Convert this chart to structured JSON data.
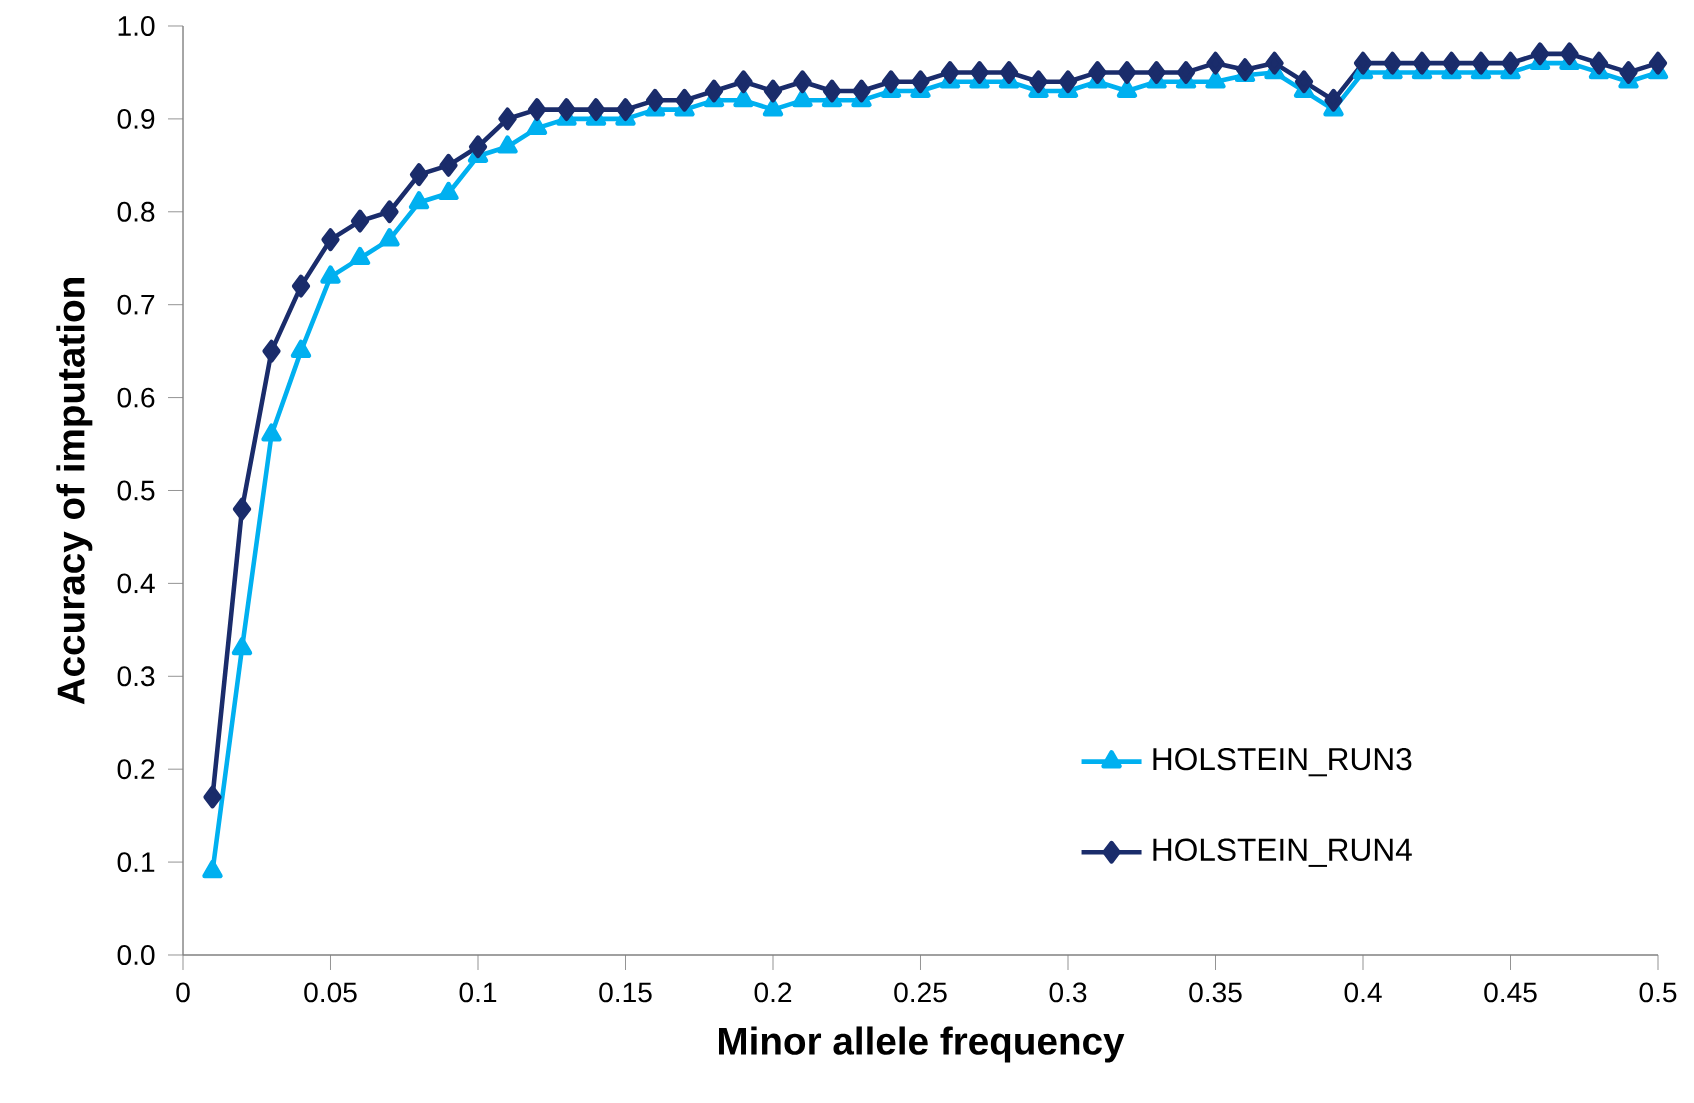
{
  "chart_data": {
    "type": "line",
    "xlabel": "Minor allele frequency",
    "ylabel": "Accuracy of imputation",
    "x": [
      0.01,
      0.02,
      0.03,
      0.04,
      0.05,
      0.06,
      0.07,
      0.08,
      0.09,
      0.1,
      0.11,
      0.12,
      0.13,
      0.14,
      0.15,
      0.16,
      0.17,
      0.18,
      0.19,
      0.2,
      0.21,
      0.22,
      0.23,
      0.24,
      0.25,
      0.26,
      0.27,
      0.28,
      0.29,
      0.3,
      0.31,
      0.32,
      0.33,
      0.34,
      0.35,
      0.36,
      0.37,
      0.38,
      0.39,
      0.4,
      0.41,
      0.42,
      0.43,
      0.44,
      0.45,
      0.46,
      0.47,
      0.48,
      0.49,
      0.5
    ],
    "series": [
      {
        "name": "HOLSTEIN_RUN3",
        "color": "#00b0f0",
        "marker": "triangle",
        "values": [
          0.09,
          0.33,
          0.56,
          0.65,
          0.73,
          0.75,
          0.77,
          0.81,
          0.82,
          0.86,
          0.87,
          0.89,
          0.9,
          0.9,
          0.9,
          0.91,
          0.91,
          0.92,
          0.92,
          0.91,
          0.92,
          0.92,
          0.92,
          0.93,
          0.93,
          0.94,
          0.94,
          0.94,
          0.93,
          0.93,
          0.94,
          0.93,
          0.94,
          0.94,
          0.94,
          0.947,
          0.95,
          0.93,
          0.91,
          0.95,
          0.95,
          0.95,
          0.95,
          0.95,
          0.95,
          0.96,
          0.96,
          0.95,
          0.94,
          0.95
        ]
      },
      {
        "name": "HOLSTEIN_RUN4",
        "color": "#1a2c6b",
        "marker": "diamond",
        "values": [
          0.17,
          0.48,
          0.65,
          0.72,
          0.77,
          0.79,
          0.8,
          0.84,
          0.85,
          0.87,
          0.9,
          0.91,
          0.91,
          0.91,
          0.91,
          0.92,
          0.92,
          0.93,
          0.94,
          0.93,
          0.94,
          0.93,
          0.93,
          0.94,
          0.94,
          0.95,
          0.95,
          0.95,
          0.94,
          0.94,
          0.95,
          0.95,
          0.95,
          0.95,
          0.96,
          0.953,
          0.96,
          0.94,
          0.92,
          0.96,
          0.96,
          0.96,
          0.96,
          0.96,
          0.96,
          0.97,
          0.97,
          0.96,
          0.95,
          0.96
        ]
      }
    ],
    "xlim": [
      0,
      0.5
    ],
    "xticks": [
      0,
      0.05,
      0.1,
      0.15,
      0.2,
      0.25,
      0.3,
      0.35,
      0.4,
      0.45,
      0.5
    ],
    "ylim": [
      0,
      1
    ],
    "yticks": [
      {
        "value": 0,
        "label": "0.0"
      },
      0.1,
      0.2,
      0.3,
      0.4,
      0.5,
      0.6,
      0.7,
      0.8,
      0.9,
      {
        "value": 1,
        "label": "1.0"
      }
    ],
    "legend": "bottom right",
    "grid": false,
    "line_style": "solid"
  }
}
